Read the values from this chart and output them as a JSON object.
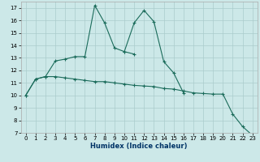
{
  "background_color": "#cce8e8",
  "grid_color": "#aacccc",
  "line_color": "#1a6b5a",
  "xlabel": "Humidex (Indice chaleur)",
  "xlim": [
    -0.5,
    23.5
  ],
  "ylim": [
    7,
    17.5
  ],
  "yticks": [
    7,
    8,
    9,
    10,
    11,
    12,
    13,
    14,
    15,
    16,
    17
  ],
  "xticks": [
    0,
    1,
    2,
    3,
    4,
    5,
    6,
    7,
    8,
    9,
    10,
    11,
    12,
    13,
    14,
    15,
    16,
    17,
    18,
    19,
    20,
    21,
    22,
    23
  ],
  "curve1_x": [
    0,
    1,
    2,
    3,
    4,
    5,
    6,
    7,
    8,
    9,
    10,
    11
  ],
  "curve1_y": [
    10.0,
    11.3,
    11.5,
    12.75,
    12.9,
    13.1,
    13.1,
    17.2,
    15.8,
    13.8,
    13.5,
    13.3
  ],
  "curve2_x": [
    10,
    11,
    12,
    13,
    14,
    15,
    16
  ],
  "curve2_y": [
    13.5,
    15.8,
    16.8,
    15.9,
    12.7,
    11.8,
    10.2
  ],
  "curve3_x": [
    0,
    1,
    2,
    3,
    4,
    5,
    6,
    7,
    8,
    9,
    10,
    11,
    12,
    13,
    14,
    15,
    16,
    17,
    18,
    19,
    20,
    21,
    22,
    23
  ],
  "curve3_y": [
    10.0,
    11.3,
    11.5,
    11.5,
    11.4,
    11.3,
    11.2,
    11.1,
    11.1,
    11.0,
    10.9,
    10.8,
    10.75,
    10.7,
    10.55,
    10.5,
    10.35,
    10.2,
    10.15,
    10.1,
    10.1,
    8.5,
    7.5,
    6.8
  ]
}
